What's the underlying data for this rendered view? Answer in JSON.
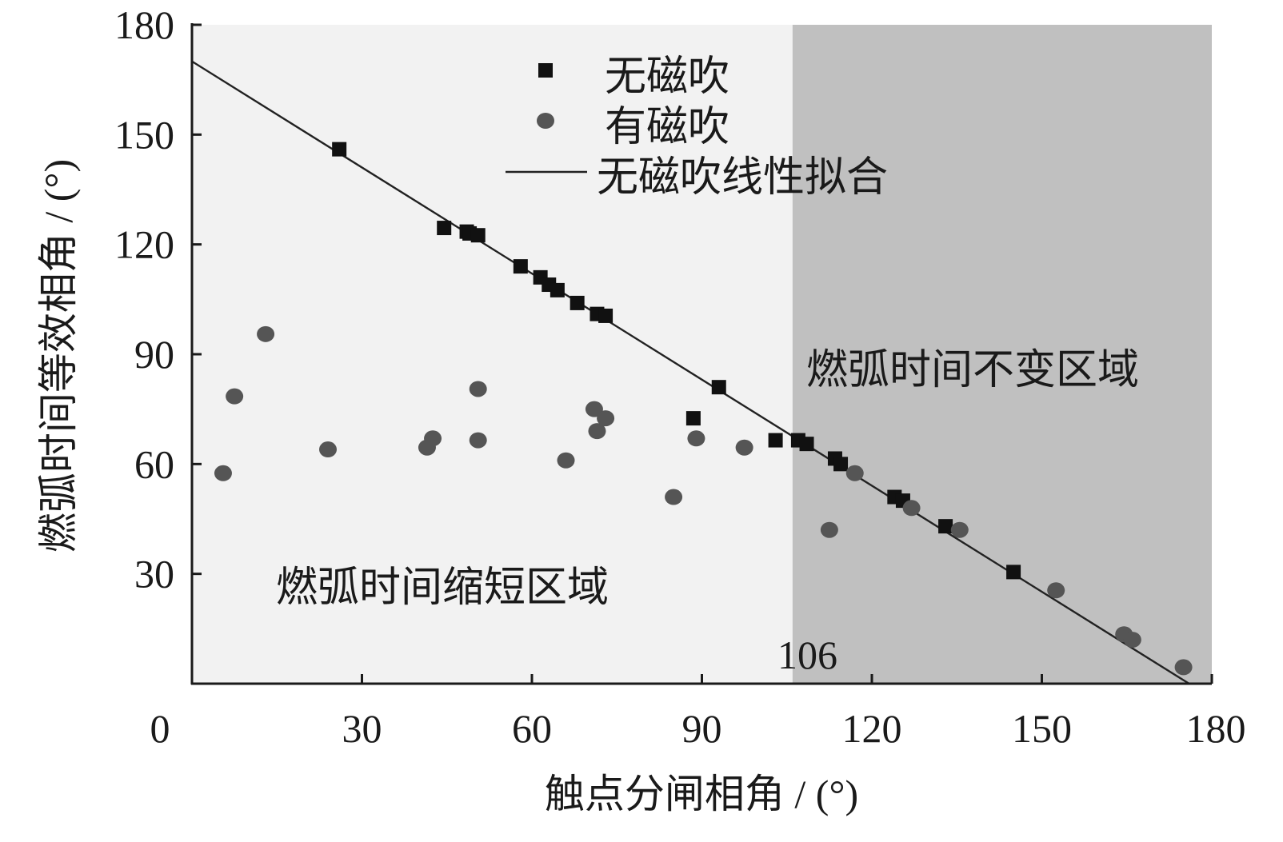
{
  "chart_data": {
    "type": "scatter",
    "title": "",
    "xlabel": "触点分闸相角 / (°)",
    "ylabel": "燃弧时间等效相角 / (°)",
    "xlim": [
      0,
      180
    ],
    "ylim": [
      0,
      180
    ],
    "xticks": [
      0,
      30,
      60,
      90,
      120,
      150,
      180
    ],
    "yticks": [
      30,
      60,
      90,
      120,
      150,
      180
    ],
    "grid": false,
    "legend_position": "top-center",
    "regions": [
      {
        "label": "燃弧时间缩短区域",
        "x_range": [
          0,
          106
        ],
        "color": "#f2f2f2"
      },
      {
        "label": "燃弧时间不变区域",
        "x_range": [
          106,
          180
        ],
        "color": "#c0c0c0"
      }
    ],
    "threshold": {
      "x": 106,
      "label": "106"
    },
    "series": [
      {
        "name": "无磁吹",
        "marker": "square",
        "color": "#111111",
        "points": [
          [
            26,
            146
          ],
          [
            44.5,
            124.5
          ],
          [
            48.5,
            123.5
          ],
          [
            49,
            123
          ],
          [
            50.5,
            122.5
          ],
          [
            58,
            114
          ],
          [
            61.5,
            111
          ],
          [
            63,
            109
          ],
          [
            64.5,
            107.5
          ],
          [
            68,
            104
          ],
          [
            71.5,
            101
          ],
          [
            73,
            100.5
          ],
          [
            88.5,
            72.5
          ],
          [
            93,
            81
          ],
          [
            103,
            66.5
          ],
          [
            107,
            66.5
          ],
          [
            108.5,
            65.5
          ],
          [
            113.5,
            61.5
          ],
          [
            114.5,
            60
          ],
          [
            124,
            51
          ],
          [
            125.5,
            50
          ],
          [
            133,
            43
          ],
          [
            145,
            30.5
          ]
        ]
      },
      {
        "name": "有磁吹",
        "marker": "circle",
        "color": "#555555",
        "points": [
          [
            5.5,
            57.5
          ],
          [
            7.5,
            78.5
          ],
          [
            13,
            95.5
          ],
          [
            24,
            64
          ],
          [
            41.5,
            64.5
          ],
          [
            42.5,
            67
          ],
          [
            50.5,
            66.5
          ],
          [
            50.5,
            80.5
          ],
          [
            66,
            61
          ],
          [
            71,
            75
          ],
          [
            71.5,
            69
          ],
          [
            73,
            72.5
          ],
          [
            85,
            51
          ],
          [
            89,
            67
          ],
          [
            97.5,
            64.5
          ],
          [
            112.5,
            42
          ],
          [
            117,
            57.5
          ],
          [
            127,
            48
          ],
          [
            135.5,
            42
          ],
          [
            152.5,
            25.5
          ],
          [
            164.5,
            13.5
          ],
          [
            166,
            12
          ],
          [
            175,
            4.5
          ]
        ]
      },
      {
        "name": "无磁吹线性拟合",
        "type": "line",
        "color": "#222222",
        "points": [
          [
            0,
            170
          ],
          [
            176,
            0
          ]
        ]
      }
    ]
  }
}
